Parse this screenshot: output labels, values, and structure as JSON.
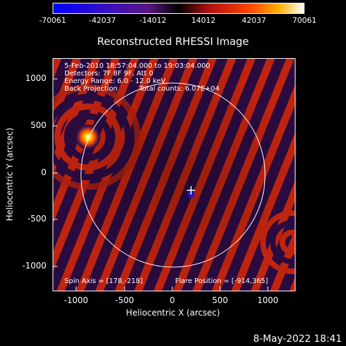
{
  "colorbar": {
    "ticks": [
      "-70061",
      "-42037",
      "-14012",
      "14012",
      "42037",
      "70061"
    ]
  },
  "title": "Reconstructed RHESSI Image",
  "info": {
    "time_range": "5-Feb-2010 18:57:04.000 to 19:03:04.000",
    "detectors": "Detectors: 7F 8F 9F, Att 0",
    "energy": "Energy Range: 6.0 - 12.0 keV",
    "method": "Back Projection",
    "counts": "Total counts: 6.07E+04",
    "spin_axis": "Spin Axis = [178,-218]",
    "flare_position": "Flare Position = [-914,365]"
  },
  "axes": {
    "xlabel": "Heliocentric X (arcsec)",
    "ylabel": "Heliocentric Y (arcsec)",
    "xticks": [
      "-1000",
      "-500",
      "0",
      "500",
      "1000"
    ],
    "yticks": [
      "1000",
      "500",
      "0",
      "-500",
      "-1000"
    ]
  },
  "footer": {
    "date": "8-May-2022 18:41"
  },
  "colors": {
    "background": "#000000",
    "plot_background": "#230834",
    "positive": "#cc2a12",
    "negative": "#3a0f4f"
  }
}
